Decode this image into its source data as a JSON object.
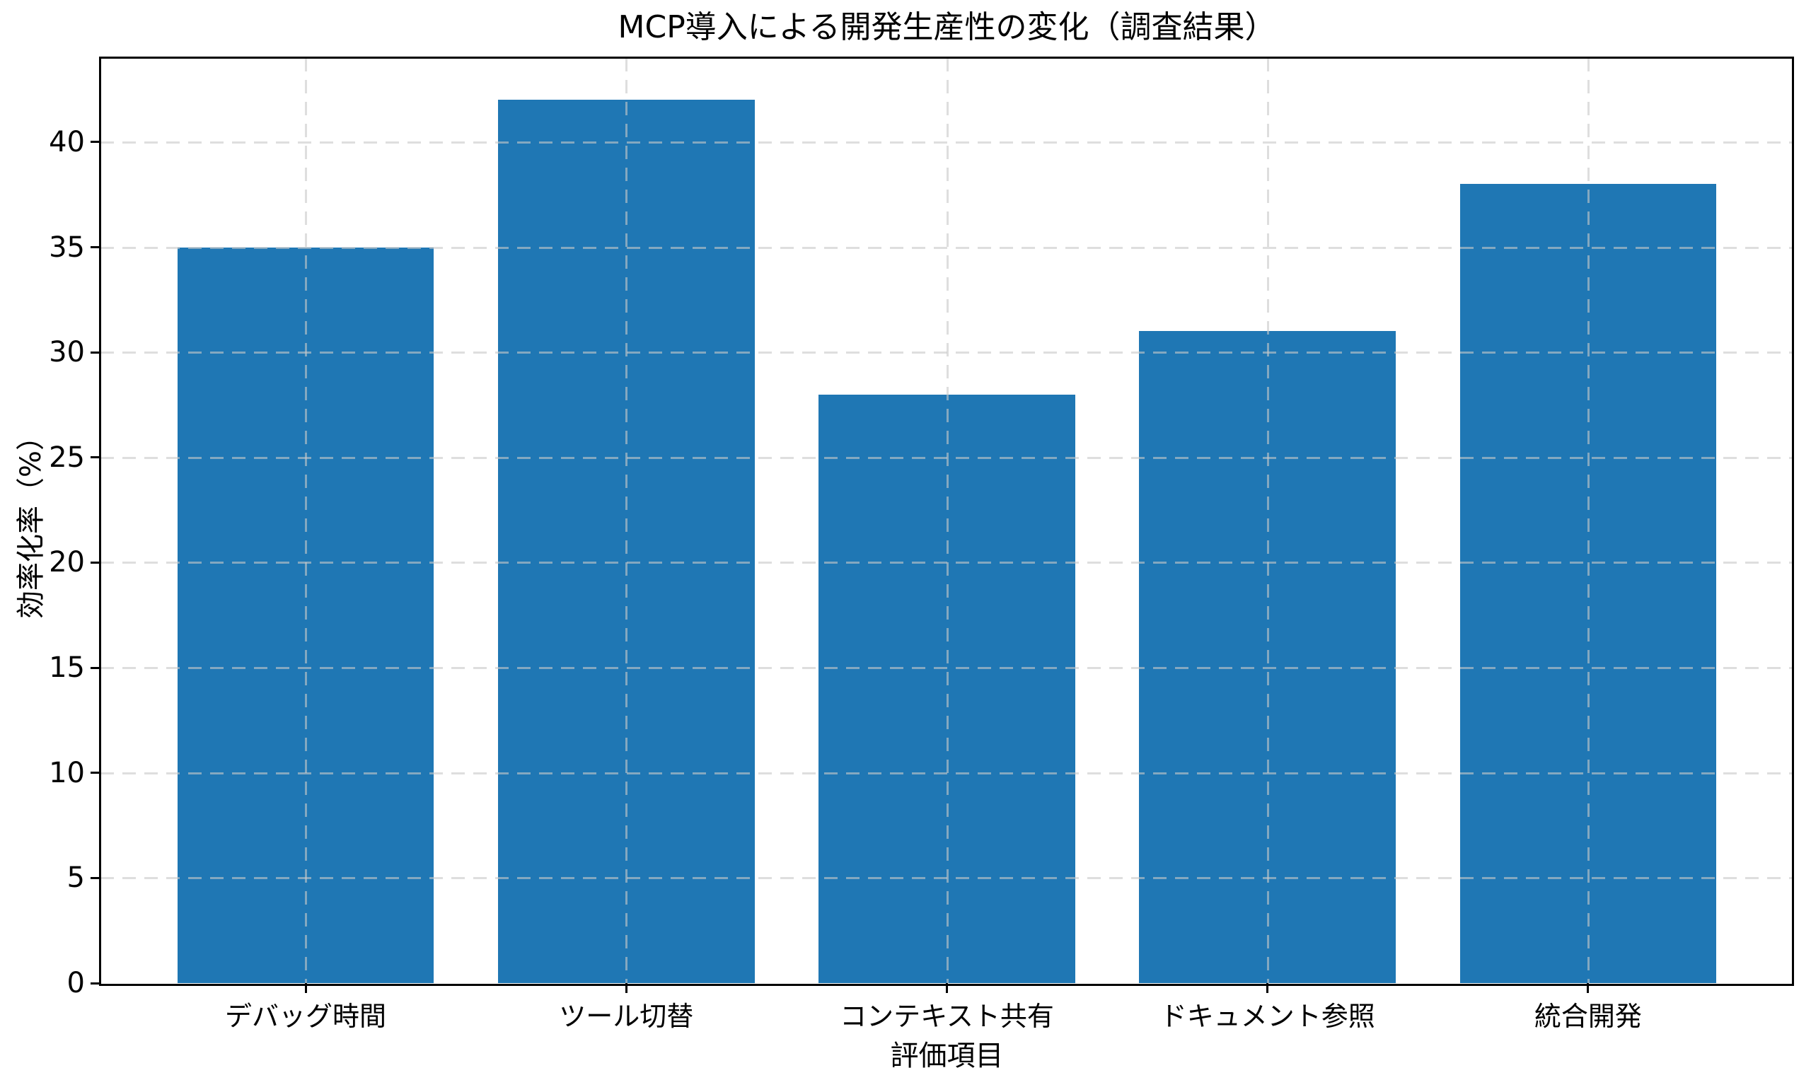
{
  "chart_data": {
    "type": "bar",
    "title": "MCP導入による開発生産性の変化（調査結果）",
    "xlabel": "評価項目",
    "ylabel": "効率化率（%）",
    "categories": [
      "デバッグ時間",
      "ツール切替",
      "コンテキスト共有",
      "ドキュメント参照",
      "統合開発"
    ],
    "values": [
      35,
      42,
      28,
      31,
      38
    ],
    "yticks": [
      0,
      5,
      10,
      15,
      20,
      25,
      30,
      35,
      40
    ],
    "ylim": [
      0,
      44
    ],
    "bar_color": "#1f77b4",
    "grid": true,
    "grid_style": "dashed",
    "grid_color": "#c8c8c8",
    "axis_color": "#000000",
    "background_color": "#ffffff",
    "legend_position": "none"
  }
}
